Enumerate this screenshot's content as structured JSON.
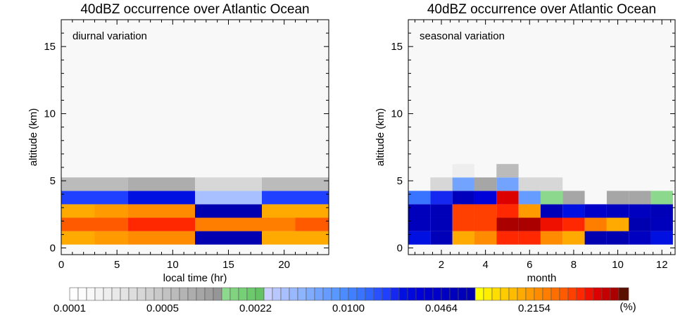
{
  "chart_data": [
    {
      "type": "heatmap",
      "title": "40dBZ occurrence over Atlantic Ocean",
      "annotation": "diurnal variation",
      "xlabel": "local time (hr)",
      "ylabel": "altitude (km)",
      "xlim": [
        0,
        24
      ],
      "ylim": [
        -0.5,
        17
      ],
      "xticks": [
        "0",
        "5",
        "10",
        "15",
        "20"
      ],
      "xtick_values": [
        0,
        5,
        10,
        15,
        20
      ],
      "yticks": [
        "0",
        "5",
        "10",
        "15"
      ],
      "ytick_values": [
        0,
        5,
        10,
        15
      ],
      "x_edges": [
        0,
        3,
        6,
        9,
        12,
        15,
        18,
        21,
        24
      ],
      "y_edges": [
        0.25,
        1.25,
        2.25,
        3.25,
        4.25,
        5.25
      ],
      "z_bins": [
        [
          53,
          54,
          55,
          55,
          47,
          47,
          53,
          53
        ],
        [
          58,
          58,
          60,
          60,
          56,
          56,
          56,
          58
        ],
        [
          53,
          54,
          55,
          55,
          47,
          47,
          53,
          53
        ],
        [
          37,
          37,
          39,
          39,
          25,
          25,
          37,
          37
        ],
        [
          12,
          12,
          14,
          14,
          8,
          8,
          12,
          12
        ]
      ]
    },
    {
      "type": "heatmap",
      "title": "40dBZ occurrence over Atlantic Ocean",
      "annotation": "seasonal variation",
      "xlabel": "month",
      "ylabel": "altitude (km)",
      "xlim": [
        0.5,
        12.6
      ],
      "ylim": [
        -0.5,
        17
      ],
      "xticks": [
        "2",
        "4",
        "6",
        "8",
        "10",
        "12"
      ],
      "xtick_values": [
        2,
        4,
        6,
        8,
        10,
        12
      ],
      "yticks": [
        "0",
        "5",
        "10",
        "15"
      ],
      "ytick_values": [
        0,
        5,
        10,
        15
      ],
      "x_edges": [
        0.5,
        1.5,
        2.5,
        3.5,
        4.5,
        5.5,
        6.5,
        7.5,
        8.5,
        9.5,
        10.5,
        11.5,
        12.5
      ],
      "y_edges": [
        0.25,
        1.25,
        2.25,
        3.25,
        4.25,
        5.25,
        6.25
      ],
      "z_bins": [
        [
          39,
          46,
          53,
          55,
          60,
          60,
          55,
          53,
          47,
          47,
          44,
          39
        ],
        [
          45,
          46,
          59,
          59,
          65,
          65,
          61,
          60,
          56,
          53,
          47,
          45
        ],
        [
          45,
          46,
          59,
          59,
          60,
          54,
          46,
          39,
          43,
          44,
          44,
          46
        ],
        [
          34,
          38,
          45,
          41,
          62,
          30,
          18,
          15,
          null,
          15,
          15,
          18
        ],
        [
          null,
          8,
          29,
          15,
          29,
          8,
          8,
          null,
          null,
          null,
          null,
          null
        ],
        [
          null,
          null,
          4,
          null,
          12,
          null,
          null,
          null,
          null,
          null,
          null,
          null
        ]
      ]
    }
  ],
  "colorbar": {
    "n_bins": 65,
    "colors": [
      "#ffffff",
      "#fcfcfc",
      "#f8f8f8",
      "#f3f3f3",
      "#eeeeee",
      "#e9e9e9",
      "#e3e3e3",
      "#dddddd",
      "#d7d7d7",
      "#d0d0d0",
      "#c9c9c9",
      "#c2c2c2",
      "#bbbbbb",
      "#b4b4b4",
      "#adadad",
      "#a6a6a6",
      "#9f9f9f",
      "#969696",
      "#8cd88c",
      "#80d480",
      "#76d076",
      "#6cca6c",
      "#64c464",
      "#c8d0ff",
      "#b8c8ff",
      "#a8c0ff",
      "#98b8ff",
      "#8cb4ff",
      "#80acff",
      "#72a4ff",
      "#669cff",
      "#5898ff",
      "#4c8cff",
      "#4080ff",
      "#3874ff",
      "#3064ff",
      "#2850ff",
      "#2040ff",
      "#1428f0",
      "#0010e0",
      "#0008dc",
      "#0000d8",
      "#0000cc",
      "#0000c8",
      "#0000c0",
      "#0000bc",
      "#0000b8",
      "#0000b0",
      "#ffff00",
      "#ffee00",
      "#ffdd00",
      "#ffcc00",
      "#ffbb00",
      "#ffaa00",
      "#ff9a00",
      "#ff8c00",
      "#ff7e00",
      "#ff6e00",
      "#ff5a00",
      "#ff4000",
      "#ff2800",
      "#f01000",
      "#dd0000",
      "#c40000",
      "#aa0000"
    ],
    "extra_color": "#5a1000",
    "tick_labels": [
      "0.0001",
      "0.0005",
      "0.0022",
      "0.0100",
      "0.0464",
      "0.2154"
    ],
    "tick_bins": [
      0,
      11,
      22,
      33,
      44,
      55
    ],
    "unit": "(%)"
  }
}
